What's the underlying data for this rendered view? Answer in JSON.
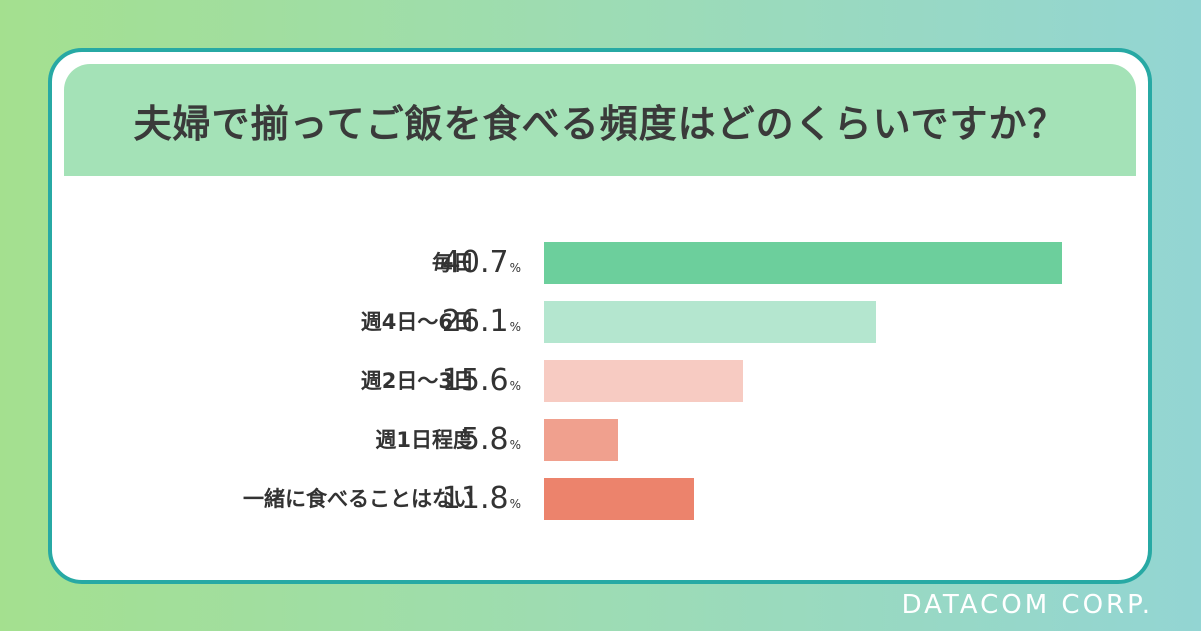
{
  "title": "夫婦で揃ってご飯を食べる頻度はどのくらいですか？",
  "footer": "DATACOM CORP.",
  "colors": {
    "background_left": "#a4e08f",
    "background_right": "#93d5d3",
    "card_border": "#27a9a4",
    "title_band": "#a4e2b7"
  },
  "chart_data": {
    "type": "bar",
    "orientation": "horizontal",
    "title": "夫婦で揃ってご飯を食べる頻度はどのくらいですか？",
    "unit": "%",
    "xlim": [
      0,
      40.7
    ],
    "grid": false,
    "categories": [
      "毎日",
      "週4日～6日",
      "週2日～3日",
      "週1日程度",
      "一緒に食べることはない"
    ],
    "values": [
      40.7,
      26.1,
      15.6,
      5.8,
      11.8
    ],
    "value_labels": [
      "40.7",
      "26.1",
      "15.6",
      "5.8",
      "11.8"
    ],
    "bar_colors": [
      "#6ccf9c",
      "#b4e6cf",
      "#f7cbc2",
      "#f0a08e",
      "#ec836c"
    ]
  }
}
